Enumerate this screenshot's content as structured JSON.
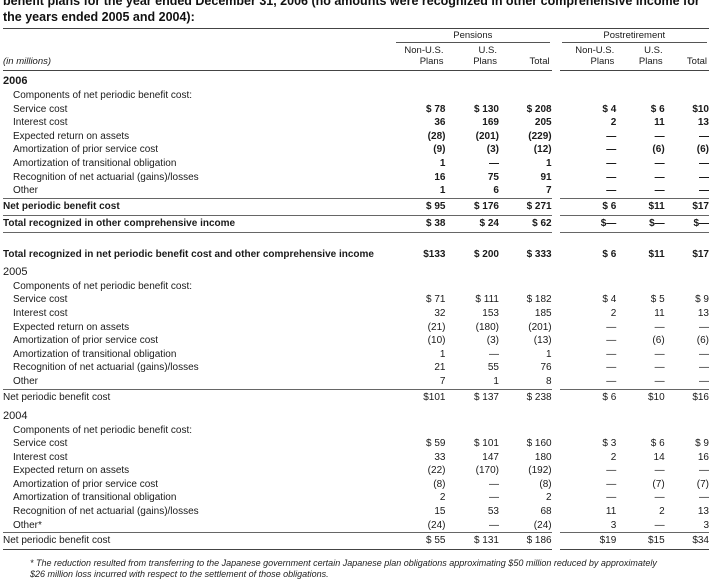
{
  "header": {
    "line1": "benefit plans for the year ended December 31, 2006 (no amounts were recognized in other comprehensive income for",
    "line2": "the years ended 2005 and 2004):"
  },
  "table": {
    "units": "(in millions)",
    "groups": {
      "pensions": "Pensions",
      "postretirement": "Postretirement"
    },
    "columns": [
      [
        "Non-U.S.",
        "Plans"
      ],
      [
        "U.S.",
        "Plans"
      ],
      [
        "",
        "Total"
      ],
      [
        "Non-U.S.",
        "Plans"
      ],
      [
        "U.S.",
        "Plans"
      ],
      [
        "",
        "Total"
      ]
    ],
    "components_label": "Components of net periodic benefit cost:",
    "years": [
      {
        "year": "2006",
        "rows": [
          {
            "label": "Service cost",
            "values": [
              "$ 78",
              "$ 130",
              "$ 208",
              "$ 4",
              "$ 6",
              "$10"
            ]
          },
          {
            "label": "Interest cost",
            "values": [
              "36",
              "169",
              "205",
              "2",
              "11",
              "13"
            ]
          },
          {
            "label": "Expected return on assets",
            "values": [
              "(28)",
              "(201)",
              "(229)",
              "—",
              "—",
              "—"
            ]
          },
          {
            "label": "Amortization of prior service cost",
            "values": [
              "(9)",
              "(3)",
              "(12)",
              "—",
              "(6)",
              "(6)"
            ]
          },
          {
            "label": "Amortization of transitional obligation",
            "values": [
              "1",
              "—",
              "1",
              "—",
              "—",
              "—"
            ]
          },
          {
            "label": "Recognition of net actuarial (gains)/losses",
            "values": [
              "16",
              "75",
              "91",
              "—",
              "—",
              "—"
            ]
          },
          {
            "label": "Other",
            "values": [
              "1",
              "6",
              "7",
              "—",
              "—",
              "—"
            ]
          }
        ],
        "net": {
          "label": "Net periodic benefit cost",
          "values": [
            "$ 95",
            "$ 176",
            "$ 271",
            "$ 6",
            "$11",
            "$17"
          ]
        },
        "oci": {
          "label": "Total recognized in other comprehensive income",
          "values": [
            "$ 38",
            "$ 24",
            "$ 62",
            "$—",
            "$—",
            "$—"
          ]
        },
        "combined": {
          "label": "Total recognized in net periodic benefit cost and other comprehensive income",
          "values": [
            "$133",
            "$ 200",
            "$ 333",
            "$ 6",
            "$11",
            "$17"
          ]
        }
      },
      {
        "year": "2005",
        "rows": [
          {
            "label": "Service cost",
            "values": [
              "$ 71",
              "$ 111",
              "$ 182",
              "$ 4",
              "$ 5",
              "$ 9"
            ]
          },
          {
            "label": "Interest cost",
            "values": [
              "32",
              "153",
              "185",
              "2",
              "11",
              "13"
            ]
          },
          {
            "label": "Expected return on assets",
            "values": [
              "(21)",
              "(180)",
              "(201)",
              "—",
              "—",
              "—"
            ]
          },
          {
            "label": "Amortization of prior service cost",
            "values": [
              "(10)",
              "(3)",
              "(13)",
              "—",
              "(6)",
              "(6)"
            ]
          },
          {
            "label": "Amortization of transitional obligation",
            "values": [
              "1",
              "—",
              "1",
              "—",
              "—",
              "—"
            ]
          },
          {
            "label": "Recognition of net actuarial (gains)/losses",
            "values": [
              "21",
              "55",
              "76",
              "—",
              "—",
              "—"
            ]
          },
          {
            "label": "Other",
            "values": [
              "7",
              "1",
              "8",
              "—",
              "—",
              "—"
            ]
          }
        ],
        "net": {
          "label": "Net periodic benefit cost",
          "values": [
            "$101",
            "$ 137",
            "$ 238",
            "$ 6",
            "$10",
            "$16"
          ]
        }
      },
      {
        "year": "2004",
        "rows": [
          {
            "label": "Service cost",
            "values": [
              "$ 59",
              "$ 101",
              "$ 160",
              "$ 3",
              "$ 6",
              "$ 9"
            ]
          },
          {
            "label": "Interest cost",
            "values": [
              "33",
              "147",
              "180",
              "2",
              "14",
              "16"
            ]
          },
          {
            "label": "Expected return on assets",
            "values": [
              "(22)",
              "(170)",
              "(192)",
              "—",
              "—",
              "—"
            ]
          },
          {
            "label": "Amortization of prior service cost",
            "values": [
              "(8)",
              "—",
              "(8)",
              "—",
              "(7)",
              "(7)"
            ]
          },
          {
            "label": "Amortization of transitional obligation",
            "values": [
              "2",
              "—",
              "2",
              "—",
              "—",
              "—"
            ]
          },
          {
            "label": "Recognition of net actuarial (gains)/losses",
            "values": [
              "15",
              "53",
              "68",
              "11",
              "2",
              "13"
            ]
          },
          {
            "label": "Other*",
            "values": [
              "(24)",
              "—",
              "(24)",
              "3",
              "—",
              "3"
            ]
          }
        ],
        "net": {
          "label": "Net periodic benefit cost",
          "values": [
            "$ 55",
            "$ 131",
            "$ 186",
            "$19",
            "$15",
            "$34"
          ]
        }
      }
    ]
  },
  "footnote": {
    "marker": "*",
    "text": "The reduction resulted from transferring to the Japanese government certain Japanese plan obligations approximating $50 million reduced by approximately $26 million loss incurred with respect to the settlement of those obligations."
  }
}
